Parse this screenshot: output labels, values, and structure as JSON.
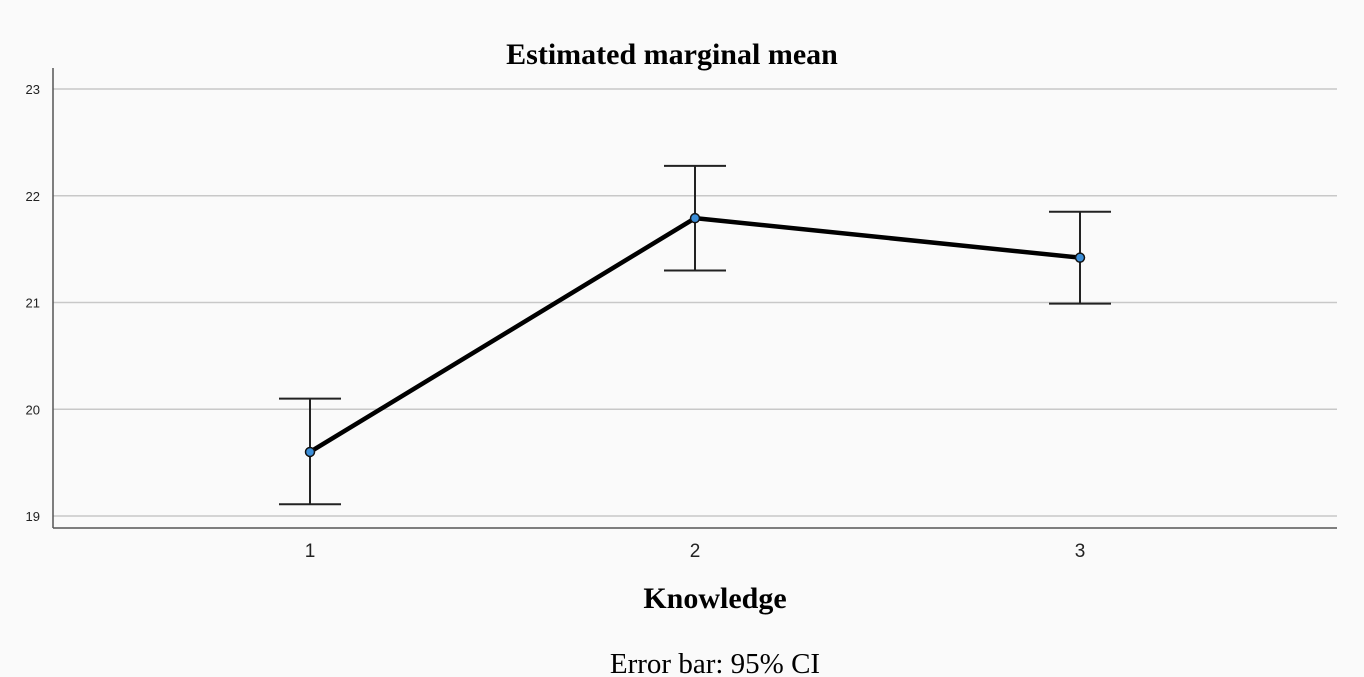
{
  "chart_data": {
    "type": "line",
    "title": "Estimated marginal mean",
    "xlabel": "Knowledge",
    "ylabel": "",
    "note": "Error bar: 95% CI",
    "categories": [
      "1",
      "2",
      "3"
    ],
    "x_tick_labels": [
      "1",
      "2",
      "3"
    ],
    "y_ticks": [
      19,
      20,
      21,
      22,
      23
    ],
    "y_tick_labels": [
      "19",
      "20",
      "21",
      "22",
      "23"
    ],
    "ylim": [
      18.9,
      23.2
    ],
    "grid": "horizontal",
    "series": [
      {
        "values": [
          19.6,
          21.79,
          21.42
        ],
        "ci_lower": [
          19.11,
          21.3,
          20.99
        ],
        "ci_upper": [
          20.1,
          22.28,
          21.85
        ]
      }
    ],
    "colors": {
      "line": "#000000",
      "marker_fill": "#3b8ed8",
      "grid": "#c8c8c8",
      "axis": "#555555"
    }
  }
}
